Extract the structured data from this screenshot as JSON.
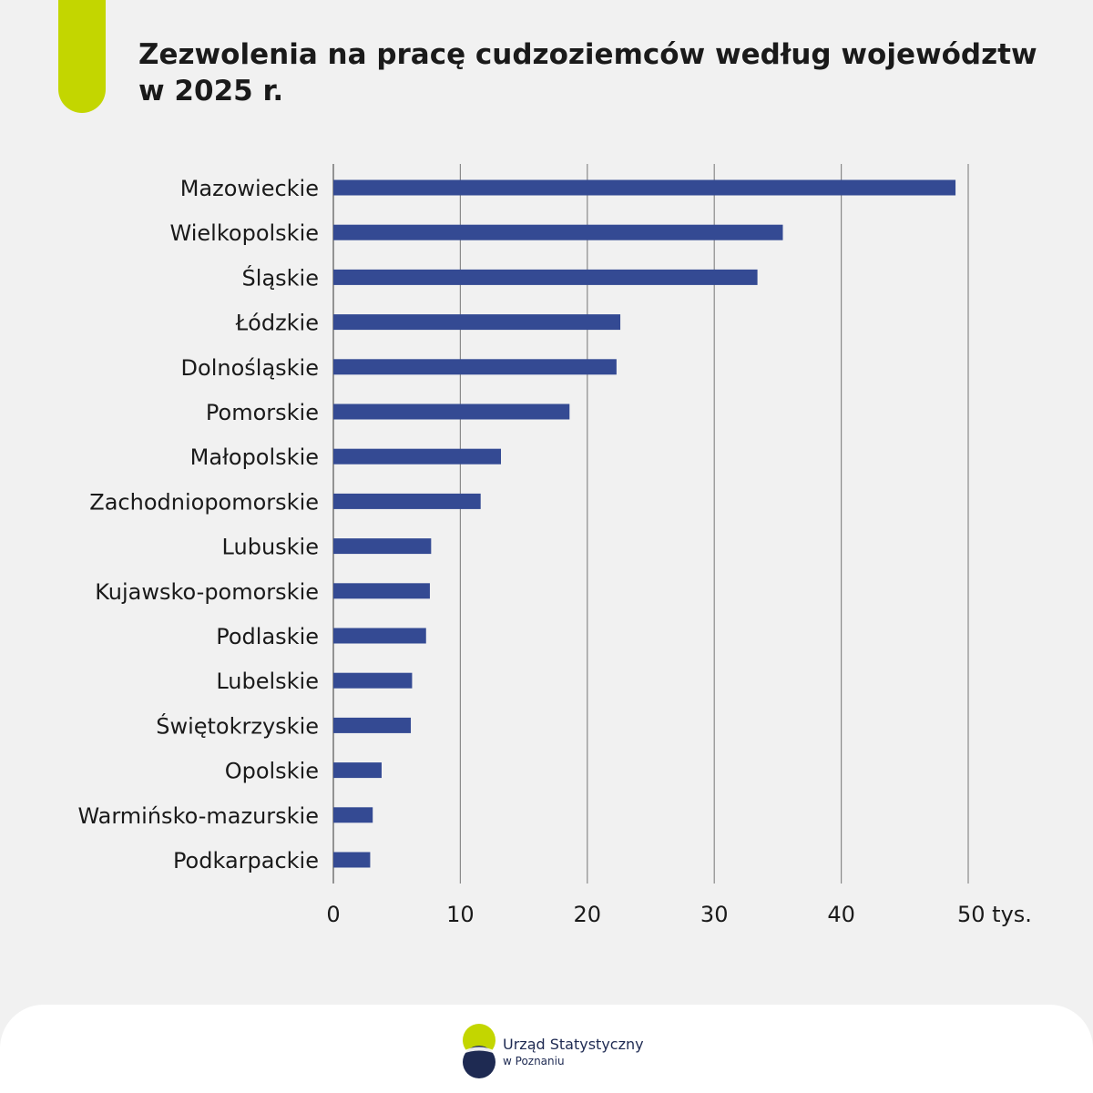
{
  "title": {
    "line1": "Zezwolenia na pracę cudzoziemców według województw",
    "line2": "w 2025 r."
  },
  "colors": {
    "bar": "#344a93",
    "accent": "#c3d600",
    "gridline": "#8a8a8a",
    "logo_navy": "#1e2a52"
  },
  "chart_data": {
    "type": "bar",
    "orientation": "horizontal",
    "categories": [
      "Mazowieckie",
      "Wielkopolskie",
      "Śląskie",
      "Łódzkie",
      "Dolnośląskie",
      "Pomorskie",
      "Małopolskie",
      "Zachodniopomorskie",
      "Lubuskie",
      "Kujawsko-pomorskie",
      "Podlaskie",
      "Lubelskie",
      "Świętokrzyskie",
      "Opolskie",
      "Warmińsko-mazurskie",
      "Podkarpackie"
    ],
    "values": [
      49.0,
      35.4,
      33.4,
      22.6,
      22.3,
      18.6,
      13.2,
      11.6,
      7.7,
      7.6,
      7.3,
      6.2,
      6.1,
      3.8,
      3.1,
      2.9
    ],
    "xlim": [
      0,
      50
    ],
    "xticks": [
      "0",
      "10",
      "20",
      "30",
      "40",
      "50 tys."
    ],
    "grid": true,
    "legend": "none"
  },
  "footer": {
    "org_name": "Urząd Statystyczny",
    "org_city": "w Poznaniu"
  }
}
